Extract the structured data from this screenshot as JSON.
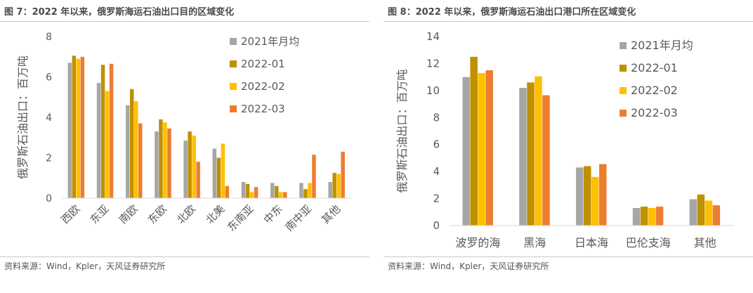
{
  "colors": {
    "series_2021": "#a6a6a6",
    "series_2022_01": "#bf9000",
    "series_2022_02": "#ffc000",
    "series_2022_03": "#ed7d31",
    "axis": "#d9d9d9"
  },
  "charts": [
    {
      "title": "图 7：2022 年以来，俄罗斯海运石油出口目的区域变化",
      "source": "资料来源：Wind，Kpler，天风证券研究所"
    },
    {
      "title": "图 8：2022 年以来，俄罗斯海运石油出口港口所在区域变化",
      "source": "资料来源：Wind，Kpler，天风证券研究所"
    }
  ],
  "chart_data": [
    {
      "type": "bar",
      "title": "",
      "xlabel": "",
      "ylabel": "俄罗斯石油出口：百万吨",
      "ylim": [
        0,
        8
      ],
      "yticks": [
        "0",
        "2",
        "4",
        "6",
        "8"
      ],
      "grid": false,
      "legend": "top-right",
      "categories": [
        "西欧",
        "东亚",
        "南欧",
        "东欧",
        "北欧",
        "北美",
        "东南亚",
        "中东",
        "南中亚",
        "其他"
      ],
      "series": [
        {
          "name": "2021年月均",
          "values": [
            6.7,
            5.7,
            4.6,
            3.3,
            2.85,
            2.45,
            0.8,
            0.75,
            0.75,
            0.8
          ]
        },
        {
          "name": "2022-01",
          "values": [
            7.05,
            6.6,
            5.4,
            3.9,
            3.3,
            2.0,
            0.7,
            0.6,
            0.45,
            1.25
          ]
        },
        {
          "name": "2022-02",
          "values": [
            6.9,
            5.3,
            4.8,
            3.75,
            3.1,
            2.7,
            0.3,
            0.3,
            0.75,
            1.2
          ]
        },
        {
          "name": "2022-03",
          "values": [
            7.0,
            6.65,
            3.7,
            3.45,
            1.8,
            0.6,
            0.55,
            0.3,
            2.15,
            2.3
          ]
        }
      ]
    },
    {
      "type": "bar",
      "title": "",
      "xlabel": "",
      "ylabel": "俄罗斯石油出口：百万吨",
      "ylim": [
        0,
        14
      ],
      "yticks": [
        "0",
        "2",
        "4",
        "6",
        "8",
        "10",
        "12",
        "14"
      ],
      "grid": false,
      "legend": "top-right",
      "categories": [
        "波罗的海",
        "黑海",
        "日本海",
        "巴伦支海",
        "其他"
      ],
      "series": [
        {
          "name": "2021年月均",
          "values": [
            11.0,
            10.2,
            4.3,
            1.3,
            1.95
          ]
        },
        {
          "name": "2022-01",
          "values": [
            12.5,
            10.6,
            4.4,
            1.4,
            2.3
          ]
        },
        {
          "name": "2022-02",
          "values": [
            11.3,
            11.05,
            3.6,
            1.3,
            1.85
          ]
        },
        {
          "name": "2022-03",
          "values": [
            11.5,
            9.65,
            4.55,
            1.4,
            1.5
          ]
        }
      ]
    }
  ]
}
